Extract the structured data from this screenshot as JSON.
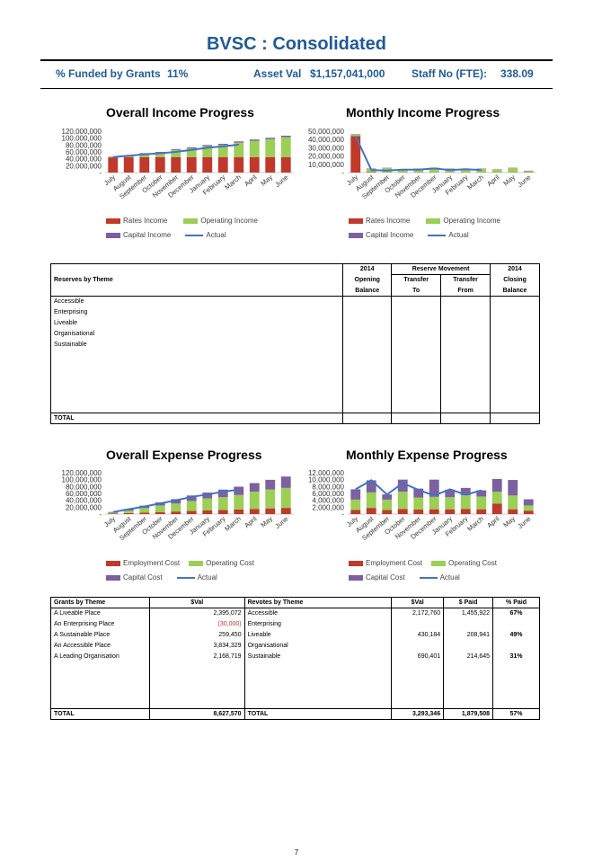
{
  "title": "BVSC : Consolidated",
  "kpis": {
    "funded_label": "% Funded by Grants",
    "funded_value": "11%",
    "asset_label": "Asset Val",
    "asset_value": "$1,157,041,000",
    "staff_label": "Staff No (FTE):",
    "staff_value": "338.09"
  },
  "months": [
    "July",
    "August",
    "September",
    "October",
    "November",
    "December",
    "January",
    "February",
    "March",
    "April",
    "May",
    "June"
  ],
  "chart_data": [
    {
      "type": "bar",
      "title": "Overall Income Progress",
      "stacked": true,
      "categories": [
        "July",
        "August",
        "September",
        "October",
        "November",
        "December",
        "January",
        "February",
        "March",
        "April",
        "May",
        "June"
      ],
      "yticks": [
        "120,000,000",
        "100,000,000",
        "80,000,000",
        "60,000,000",
        "40,000,000",
        "20,000,000",
        "-"
      ],
      "ylim": [
        0,
        120000000
      ],
      "series": [
        {
          "name": "Rates Income",
          "color": "#c0392b",
          "values": [
            44000000,
            45000000,
            45000000,
            45000000,
            45000000,
            45000000,
            45000000,
            45000000,
            45000000,
            45000000,
            45000000,
            45000000
          ]
        },
        {
          "name": "Operating Income",
          "color": "#9bcf55",
          "values": [
            2000000,
            4000000,
            10000000,
            13000000,
            20000000,
            25000000,
            32000000,
            35000000,
            42000000,
            47000000,
            52000000,
            58000000
          ]
        },
        {
          "name": "Capital Income",
          "color": "#7d60a0",
          "values": [
            500000,
            1000000,
            1500000,
            2000000,
            2500000,
            3000000,
            3000000,
            3500000,
            3500000,
            4000000,
            4000000,
            4000000
          ]
        }
      ],
      "line": {
        "name": "Actual",
        "color": "#4472c4",
        "values": [
          45000000,
          49000000,
          53000000,
          56000000,
          60000000,
          66000000,
          72000000,
          76000000,
          81000000,
          null,
          null,
          null
        ]
      },
      "legend": "bottom"
    },
    {
      "type": "bar",
      "title": "Monthly Income Progress",
      "stacked": true,
      "categories": [
        "July",
        "August",
        "September",
        "October",
        "November",
        "December",
        "January",
        "February",
        "March",
        "April",
        "May",
        "June"
      ],
      "yticks": [
        "50,000,000",
        "40,000,000",
        "30,000,000",
        "20,000,000",
        "10,000,000",
        "-"
      ],
      "ylim": [
        0,
        50000000
      ],
      "series": [
        {
          "name": "Rates Income",
          "color": "#c0392b",
          "values": [
            44000000,
            500000,
            300000,
            300000,
            300000,
            300000,
            300000,
            300000,
            300000,
            300000,
            300000,
            300000
          ]
        },
        {
          "name": "Operating Income",
          "color": "#9bcf55",
          "values": [
            2000000,
            4000000,
            5000000,
            3000000,
            4000000,
            5000000,
            4000000,
            4000000,
            4000000,
            3000000,
            5000000,
            1500000
          ]
        },
        {
          "name": "Capital Income",
          "color": "#7d60a0",
          "values": [
            500000,
            500000,
            500000,
            500000,
            500000,
            500000,
            500000,
            500000,
            500000,
            500000,
            500000,
            500000
          ]
        }
      ],
      "line": {
        "name": "Actual",
        "color": "#4472c4",
        "values": [
          44000000,
          3000000,
          2500000,
          3500000,
          3500000,
          5000000,
          3000000,
          4000000,
          3000000,
          null,
          null,
          null
        ]
      },
      "legend": "bottom"
    },
    {
      "type": "bar",
      "title": "Overall Expense Progress",
      "stacked": true,
      "categories": [
        "July",
        "August",
        "September",
        "October",
        "November",
        "December",
        "January",
        "February",
        "March",
        "April",
        "May",
        "June"
      ],
      "yticks": [
        "120,000,000",
        "100,000,000",
        "80,000,000",
        "60,000,000",
        "40,000,000",
        "20,000,000",
        "-"
      ],
      "ylim": [
        0,
        120000000
      ],
      "series": [
        {
          "name": "Employment Cost",
          "color": "#c0392b",
          "values": [
            1500000,
            3000000,
            4500000,
            6000000,
            7500000,
            9000000,
            10500000,
            12000000,
            13500000,
            15000000,
            16500000,
            18000000
          ]
        },
        {
          "name": "Operating Cost",
          "color": "#9bcf55",
          "values": [
            2500000,
            7000000,
            13000000,
            19000000,
            23000000,
            29000000,
            35000000,
            37000000,
            42000000,
            50000000,
            55000000,
            58000000
          ]
        },
        {
          "name": "Capital Cost",
          "color": "#7d60a0",
          "values": [
            2000000,
            5000000,
            7000000,
            9000000,
            13000000,
            16000000,
            17000000,
            22000000,
            24000000,
            25000000,
            28000000,
            33000000
          ]
        }
      ],
      "line": {
        "name": "Actual",
        "color": "#4472c4",
        "values": [
          6000000,
          14000000,
          22000000,
          31000000,
          40000000,
          50000000,
          57000000,
          65000000,
          71000000,
          null,
          null,
          null
        ]
      },
      "legend": "bottom"
    },
    {
      "type": "bar",
      "title": "Monthly Expense Progress",
      "stacked": true,
      "categories": [
        "July",
        "August",
        "September",
        "October",
        "November",
        "December",
        "January",
        "February",
        "March",
        "April",
        "May",
        "June"
      ],
      "yticks": [
        "12,000,000",
        "10,000,000",
        "8,000,000",
        "6,000,000",
        "4,000,000",
        "2,000,000",
        "-"
      ],
      "ylim": [
        0,
        12000000
      ],
      "series": [
        {
          "name": "Employment Cost",
          "color": "#c0392b",
          "values": [
            1200000,
            1800000,
            1200000,
            1500000,
            1300000,
            1400000,
            1400000,
            1500000,
            1400000,
            3000000,
            1400000,
            1000000
          ]
        },
        {
          "name": "Operating Cost",
          "color": "#9bcf55",
          "values": [
            3000000,
            4500000,
            3000000,
            5000000,
            3500000,
            3600000,
            3500000,
            4000000,
            3700000,
            3500000,
            4000000,
            1500000
          ]
        },
        {
          "name": "Capital Cost",
          "color": "#7d60a0",
          "values": [
            3000000,
            3500000,
            1500000,
            3500000,
            2600000,
            5000000,
            2200000,
            2100000,
            1800000,
            3700000,
            4500000,
            1800000
          ]
        }
      ],
      "line": {
        "name": "Actual",
        "color": "#4472c4",
        "values": [
          7200000,
          9800000,
          5700000,
          9000000,
          7000000,
          5400000,
          7200000,
          5600000,
          6900000,
          null,
          null,
          null
        ]
      },
      "legend": "bottom"
    }
  ],
  "reserves": {
    "col_theme": "Reserves by Theme",
    "h_2014a": "2014",
    "h_opening": "Opening",
    "h_balance": "Balance",
    "h_movement": "Reserve Movement",
    "h_transfer": "Transfer",
    "h_to": "To",
    "h_from": "From",
    "h_2014b": "2014",
    "h_closing": "Closing",
    "rows": [
      "Accessible",
      "Enterprising",
      "Liveable",
      "Organisational",
      "Sustainable"
    ],
    "total": "TOTAL"
  },
  "grants": {
    "h_grants": "Grants by Theme",
    "h_val": "$Val",
    "h_revotes": "Revotes by Theme",
    "h_val2": "$Val",
    "h_paid": "$ Paid",
    "h_pct": "% Paid",
    "rows": [
      {
        "g": "A Liveable Place",
        "gv": "2,395,072",
        "r": "Accessible",
        "rv": "2,172,760",
        "p": "1,455,922",
        "pct": "67%"
      },
      {
        "g": "An Enterprising Place",
        "gv": "(30,000)",
        "r": "Enterprising",
        "rv": "",
        "p": "",
        "pct": ""
      },
      {
        "g": "A Sustainable Place",
        "gv": "259,450",
        "r": "Liveable",
        "rv": "430,184",
        "p": "208,941",
        "pct": "49%"
      },
      {
        "g": "An Accessible Place",
        "gv": "3,834,329",
        "r": "Organisational",
        "rv": "",
        "p": "",
        "pct": ""
      },
      {
        "g": "A Leading Organisation",
        "gv": "2,168,719",
        "r": "Sustainable",
        "rv": "690,401",
        "p": "214,645",
        "pct": "31%"
      }
    ],
    "total_label": "TOTAL",
    "total_gv": "8,627,570",
    "total_label2": "TOTAL",
    "total_rv": "3,293,346",
    "total_p": "1,879,508",
    "total_pct": "57%"
  },
  "page_number": "7"
}
